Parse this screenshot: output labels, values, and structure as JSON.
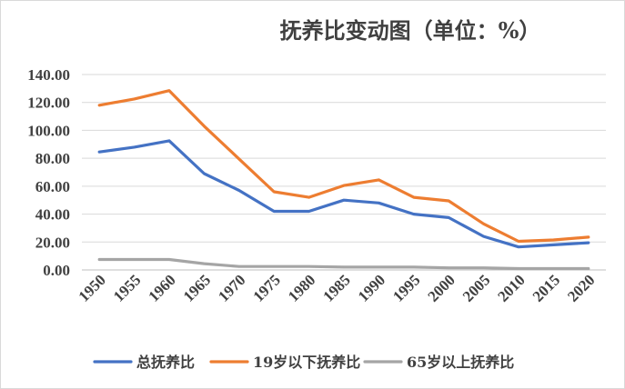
{
  "chart_data": {
    "type": "line",
    "title": "抚养比变动图（单位：%）",
    "xlabel": "",
    "ylabel": "",
    "ylim": [
      0,
      140
    ],
    "yticks": [
      "0.00",
      "20.00",
      "40.00",
      "60.00",
      "80.00",
      "100.00",
      "120.00",
      "140.00"
    ],
    "categories": [
      "1950",
      "1955",
      "1960",
      "1965",
      "1970",
      "1975",
      "1980",
      "1985",
      "1990",
      "1995",
      "2000",
      "2005",
      "2010",
      "2015",
      "2020"
    ],
    "grid": true,
    "legend_position": "bottom",
    "series": [
      {
        "name": "总抚养比",
        "color": "#4472c4",
        "values": [
          84.5,
          88,
          92.5,
          69,
          57,
          42,
          42,
          50,
          48,
          40,
          37.5,
          24,
          16.5,
          18,
          19.5
        ]
      },
      {
        "name": "19岁以下抚养比",
        "color": "#ed7d31",
        "values": [
          118,
          122.5,
          128.5,
          103,
          79.5,
          56,
          52,
          60.5,
          64.5,
          52,
          49.5,
          33,
          20.5,
          21.5,
          23.5
        ]
      },
      {
        "name": "65岁以上抚养比",
        "color": "#a5a5a5",
        "values": [
          7.5,
          7.5,
          7.5,
          4.5,
          2.5,
          2.5,
          2.5,
          2,
          2,
          2,
          1.5,
          1.5,
          1,
          1,
          1
        ]
      }
    ]
  }
}
